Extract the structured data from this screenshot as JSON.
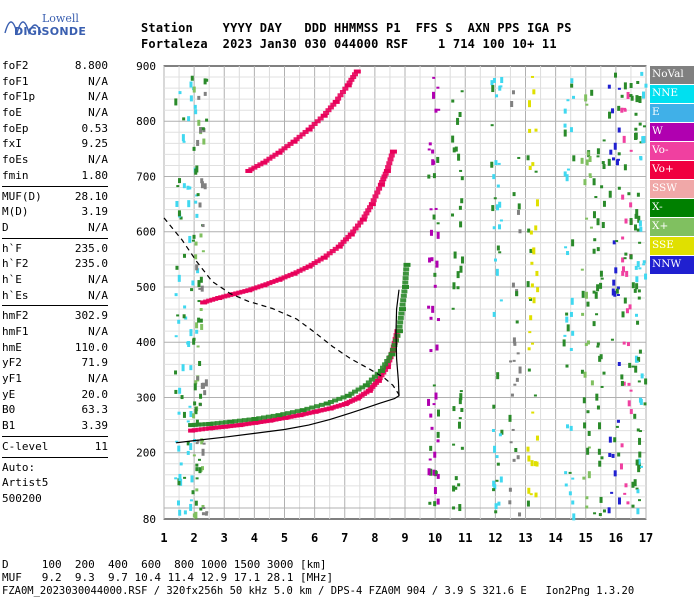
{
  "logo": {
    "line1": "Lowell",
    "line2": "DIGISONDE"
  },
  "header": {
    "line1": "Station    YYYY DAY   DDD HHMMSS P1  FFS S  AXN PPS IGA PS",
    "line2": "Fortaleza  2023 Jan30 030 044000 RSF    1 714 100 10+ 11"
  },
  "params": [
    [
      {
        "k": "foF2",
        "v": "8.800"
      },
      {
        "k": "foF1",
        "v": "N/A"
      },
      {
        "k": "foF1p",
        "v": "N/A"
      },
      {
        "k": "foE",
        "v": "N/A"
      },
      {
        "k": "foEp",
        "v": "0.53"
      },
      {
        "k": "fxI",
        "v": "9.25"
      },
      {
        "k": "foEs",
        "v": "N/A"
      },
      {
        "k": "fmin",
        "v": "1.80"
      }
    ],
    [
      {
        "k": "MUF(D)",
        "v": "28.10"
      },
      {
        "k": "M(D)",
        "v": "3.19"
      },
      {
        "k": "D",
        "v": "N/A"
      }
    ],
    [
      {
        "k": "h`F",
        "v": "235.0"
      },
      {
        "k": "h`F2",
        "v": "235.0"
      },
      {
        "k": "h`E",
        "v": "N/A"
      },
      {
        "k": "h`Es",
        "v": "N/A"
      }
    ],
    [
      {
        "k": "hmF2",
        "v": "302.9"
      },
      {
        "k": "hmF1",
        "v": "N/A"
      },
      {
        "k": "hmE",
        "v": "110.0"
      },
      {
        "k": "yF2",
        "v": "71.9"
      },
      {
        "k": "yF1",
        "v": "N/A"
      },
      {
        "k": "yE",
        "v": "20.0"
      },
      {
        "k": "B0",
        "v": "63.3"
      },
      {
        "k": "B1",
        "v": "3.39"
      }
    ],
    [
      {
        "k": "C-level",
        "v": "11"
      }
    ]
  ],
  "auto": {
    "line1": "Auto:",
    "line2": "Artist5",
    "line3": "500200"
  },
  "legend": [
    {
      "label": "NoVal",
      "color": "#808080"
    },
    {
      "label": "NNE",
      "color": "#00e0f0"
    },
    {
      "label": "E",
      "color": "#40b0e8"
    },
    {
      "label": "W",
      "color": "#b000b0"
    },
    {
      "label": "Vo-",
      "color": "#f040a0"
    },
    {
      "label": "Vo+",
      "color": "#f00040"
    },
    {
      "label": "SSW",
      "color": "#f0a8a8"
    },
    {
      "label": "X-",
      "color": "#008000"
    },
    {
      "label": "X+",
      "color": "#80c060"
    },
    {
      "label": "SSE",
      "color": "#e0e000"
    },
    {
      "label": "NNW",
      "color": "#2020d0"
    }
  ],
  "footer": {
    "line1": "D     100  200  400  600  800 1000 1500 3000 [km]",
    "line2": "MUF   9.2  9.3  9.7 10.4 11.4 12.9 17.1 28.1 [MHz]",
    "line3": "FZA0M_2023030044000.RSF / 320fx256h 50 kHz 5.0 km / DPS-4 FZA0M 904 / 3.9 S 321.6 E   Ion2Png 1.3.20"
  },
  "chart_data": {
    "type": "scatter",
    "x_label": "",
    "y_label": "",
    "xlim": [
      1,
      17
    ],
    "ylim": [
      80,
      900
    ],
    "x_ticks": [
      1,
      2,
      3,
      4,
      5,
      6,
      7,
      8,
      9,
      10,
      11,
      12,
      13,
      14,
      15,
      16,
      17
    ],
    "y_ticks": [
      80,
      200,
      300,
      400,
      500,
      600,
      700,
      800,
      900
    ],
    "grid": true,
    "series": [
      {
        "role": "trace-1",
        "color": "#e8005a",
        "points": [
          [
            1.9,
            240
          ],
          [
            2.5,
            244
          ],
          [
            3.0,
            247
          ],
          [
            3.5,
            250
          ],
          [
            4.0,
            254
          ],
          [
            4.5,
            258
          ],
          [
            5.0,
            263
          ],
          [
            5.5,
            268
          ],
          [
            6.0,
            274
          ],
          [
            6.5,
            280
          ],
          [
            7.0,
            288
          ],
          [
            7.4,
            298
          ],
          [
            7.8,
            312
          ],
          [
            8.1,
            330
          ],
          [
            8.4,
            355
          ],
          [
            8.6,
            385
          ],
          [
            8.75,
            420
          ]
        ]
      },
      {
        "role": "trace-2",
        "color": "#e8005a",
        "points": [
          [
            2.3,
            472
          ],
          [
            2.8,
            480
          ],
          [
            3.3,
            487
          ],
          [
            3.8,
            494
          ],
          [
            4.3,
            503
          ],
          [
            4.8,
            513
          ],
          [
            5.3,
            524
          ],
          [
            5.8,
            537
          ],
          [
            6.3,
            553
          ],
          [
            6.8,
            573
          ],
          [
            7.2,
            595
          ],
          [
            7.6,
            622
          ],
          [
            7.9,
            650
          ],
          [
            8.2,
            685
          ],
          [
            8.4,
            710
          ],
          [
            8.6,
            745
          ]
        ]
      },
      {
        "role": "trace-3",
        "color": "#e8005a",
        "points": [
          [
            3.8,
            710
          ],
          [
            4.3,
            725
          ],
          [
            4.8,
            743
          ],
          [
            5.3,
            763
          ],
          [
            5.8,
            785
          ],
          [
            6.3,
            810
          ],
          [
            6.7,
            835
          ],
          [
            7.1,
            865
          ],
          [
            7.4,
            890
          ]
        ]
      },
      {
        "role": "trace-4",
        "color": "#2a8a2a",
        "points": [
          [
            1.9,
            250
          ],
          [
            2.5,
            252
          ],
          [
            3.2,
            256
          ],
          [
            4.0,
            261
          ],
          [
            4.8,
            268
          ],
          [
            5.6,
            277
          ],
          [
            6.4,
            289
          ],
          [
            7.1,
            303
          ],
          [
            7.7,
            322
          ],
          [
            8.2,
            348
          ],
          [
            8.55,
            378
          ],
          [
            8.8,
            420
          ],
          [
            8.9,
            460
          ],
          [
            9.0,
            500
          ],
          [
            9.05,
            540
          ]
        ]
      },
      {
        "role": "profile-solid",
        "color": "#000000",
        "points": [
          [
            1.4,
            218
          ],
          [
            2.0,
            222
          ],
          [
            3.0,
            228
          ],
          [
            4.0,
            235
          ],
          [
            5.0,
            242
          ],
          [
            5.8,
            250
          ],
          [
            6.5,
            260
          ],
          [
            7.2,
            272
          ],
          [
            7.8,
            283
          ],
          [
            8.3,
            292
          ],
          [
            8.65,
            298
          ],
          [
            8.8,
            303
          ],
          [
            8.78,
            330
          ],
          [
            8.72,
            370
          ],
          [
            8.7,
            420
          ],
          [
            8.72,
            460
          ],
          [
            8.8,
            495
          ]
        ]
      },
      {
        "role": "profile-dashed",
        "color": "#000000",
        "points": [
          [
            1.0,
            625
          ],
          [
            1.6,
            585
          ],
          [
            2.1,
            545
          ],
          [
            2.6,
            510
          ],
          [
            3.2,
            488
          ],
          [
            3.8,
            474
          ],
          [
            4.6,
            461
          ],
          [
            5.4,
            442
          ],
          [
            6.0,
            418
          ],
          [
            6.6,
            392
          ],
          [
            7.2,
            370
          ],
          [
            7.8,
            352
          ],
          [
            8.3,
            336
          ],
          [
            8.6,
            322
          ],
          [
            8.8,
            305
          ],
          [
            8.75,
            300
          ]
        ]
      }
    ]
  }
}
